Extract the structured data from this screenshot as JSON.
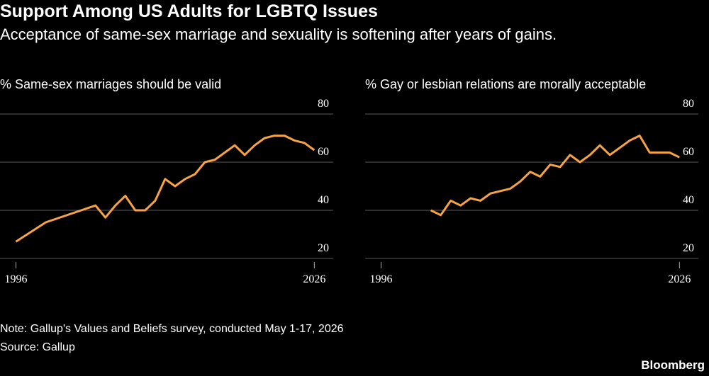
{
  "title": "Support Among US Adults for LGBTQ Issues",
  "subtitle": "Acceptance of same-sex marriage and sexuality is softening after years of gains.",
  "note": "Note: Gallup's Values and Beliefs survey, conducted May 1-17, 2026",
  "source": "Source: Gallup",
  "brand": "Bloomberg",
  "chart_data": [
    {
      "type": "line",
      "title": "% Same-sex marriages should be valid",
      "x": [
        1996,
        1999,
        2004,
        2005,
        2006,
        2007,
        2008,
        2009,
        2010,
        2011,
        2012,
        2013,
        2014,
        2015,
        2016,
        2017,
        2018,
        2019,
        2020,
        2021,
        2022,
        2023,
        2024,
        2025,
        2026
      ],
      "values": [
        27,
        35,
        42,
        37,
        42,
        46,
        40,
        40,
        44,
        53,
        50,
        53,
        55,
        60,
        61,
        64,
        67,
        63,
        67,
        70,
        71,
        71,
        69,
        68,
        65
      ],
      "color": "#f7a343",
      "xlim": [
        1994.4,
        2027.9
      ],
      "xticks": [
        1996,
        2026
      ],
      "ylim": [
        20,
        80
      ],
      "yticks": [
        20,
        40,
        60,
        80
      ],
      "grid": true
    },
    {
      "type": "line",
      "title": "% Gay or lesbian relations are morally acceptable",
      "x": [
        2001,
        2002,
        2003,
        2004,
        2005,
        2006,
        2007,
        2008,
        2009,
        2010,
        2011,
        2012,
        2013,
        2014,
        2015,
        2016,
        2017,
        2018,
        2019,
        2020,
        2021,
        2022,
        2023,
        2024,
        2025,
        2026
      ],
      "values": [
        40,
        38,
        44,
        42,
        45,
        44,
        47,
        48,
        49,
        52,
        56,
        54,
        59,
        58,
        63,
        60,
        63,
        67,
        63,
        66,
        69,
        71,
        64,
        64,
        64,
        62
      ],
      "color": "#f7a343",
      "xlim": [
        1994.4,
        2027.9
      ],
      "xticks": [
        1996,
        2026
      ],
      "ylim": [
        20,
        80
      ],
      "yticks": [
        20,
        40,
        60,
        80
      ],
      "grid": true
    }
  ]
}
